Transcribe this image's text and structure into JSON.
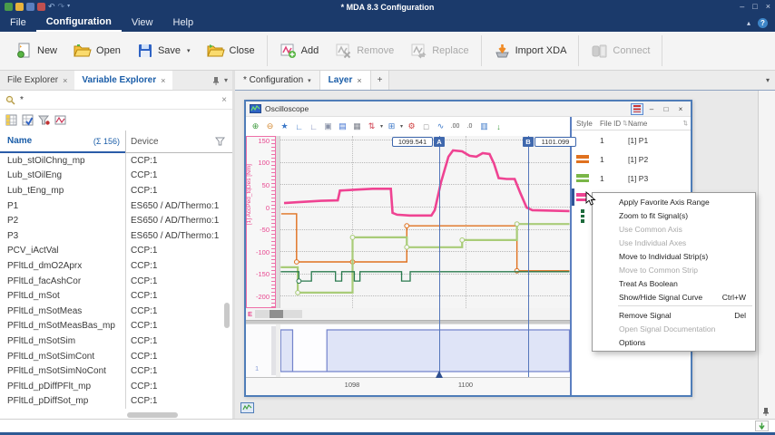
{
  "ui": {
    "close": "×",
    "dropdown": "▾",
    "collapse": "▴",
    "help": "?",
    "min": "–",
    "max": "□",
    "sort": "⇅",
    "plus": "+"
  },
  "titlebar": {
    "title": "* MDA 8.3  Configuration"
  },
  "menubar": {
    "items": [
      {
        "label": "File"
      },
      {
        "label": "Configuration"
      },
      {
        "label": "View"
      },
      {
        "label": "Help"
      }
    ]
  },
  "ribbon": {
    "groups": [
      {
        "buttons": [
          {
            "label": "New",
            "enabled": true
          },
          {
            "label": "Open",
            "enabled": true
          },
          {
            "label": "Save",
            "enabled": true,
            "dropdown": true
          },
          {
            "label": "Close",
            "enabled": true
          }
        ]
      },
      {
        "buttons": [
          {
            "label": "Add",
            "enabled": true
          },
          {
            "label": "Remove",
            "enabled": false
          },
          {
            "label": "Replace",
            "enabled": false
          }
        ]
      },
      {
        "buttons": [
          {
            "label": "Import XDA",
            "enabled": true
          }
        ]
      },
      {
        "buttons": [
          {
            "label": "Connect",
            "enabled": false
          }
        ]
      }
    ]
  },
  "explorer": {
    "tabs": [
      {
        "label": "File Explorer"
      },
      {
        "label": "Variable Explorer",
        "active": true
      }
    ],
    "search": {
      "value": "*"
    },
    "header": {
      "name": "Name",
      "sum": "(Σ 156)",
      "device": "Device"
    },
    "rows": [
      {
        "name": "Lub_stOilChng_mp",
        "device": "CCP:1"
      },
      {
        "name": "Lub_stOilEng",
        "device": "CCP:1"
      },
      {
        "name": "Lub_tEng_mp",
        "device": "CCP:1"
      },
      {
        "name": "P1",
        "device": "ES650 / AD/Thermo:1"
      },
      {
        "name": "P2",
        "device": "ES650 / AD/Thermo:1"
      },
      {
        "name": "P3",
        "device": "ES650 / AD/Thermo:1"
      },
      {
        "name": "PCV_iActVal",
        "device": "CCP:1"
      },
      {
        "name": "PFltLd_dmO2Aprx",
        "device": "CCP:1"
      },
      {
        "name": "PFltLd_facAshCor",
        "device": "CCP:1"
      },
      {
        "name": "PFltLd_mSot",
        "device": "CCP:1"
      },
      {
        "name": "PFltLd_mSotMeas",
        "device": "CCP:1"
      },
      {
        "name": "PFltLd_mSotMeasBas_mp",
        "device": "CCP:1"
      },
      {
        "name": "PFltLd_mSotSim",
        "device": "CCP:1"
      },
      {
        "name": "PFltLd_mSotSimCont",
        "device": "CCP:1"
      },
      {
        "name": "PFltLd_mSotSimNoCont",
        "device": "CCP:1"
      },
      {
        "name": "PFltLd_pDiffPFlt_mp",
        "device": "CCP:1"
      },
      {
        "name": "PFltLd_pDiffSot_mp",
        "device": "CCP:1"
      }
    ]
  },
  "doc_tabs": {
    "items": [
      {
        "label": "* Configuration",
        "dropdown": true
      },
      {
        "label": "Layer",
        "active": true,
        "close": true
      },
      {
        "label": "+"
      }
    ]
  },
  "oscilloscope": {
    "title": "Oscilloscope",
    "toolbar": [
      {
        "name": "zoom-in-icon",
        "glyph": "⊕",
        "color": "#3f9b3f"
      },
      {
        "name": "zoom-out-icon",
        "glyph": "⊖",
        "color": "#d3852b"
      },
      {
        "name": "zoom-favorite-icon",
        "glyph": "★",
        "color": "#3c78c8"
      },
      {
        "name": "fixed-axis-icon",
        "glyph": "∟",
        "color": "#3c78c8"
      },
      {
        "name": "auto-axis-icon",
        "glyph": "∟",
        "color": "#7a89b8"
      },
      {
        "name": "copy-icon",
        "glyph": "▣",
        "color": "#8a93a8"
      },
      {
        "name": "save-image-icon",
        "glyph": "▤",
        "color": "#3c6fd0"
      },
      {
        "name": "print-icon",
        "glyph": "▦",
        "color": "#7a7f8a"
      },
      {
        "name": "signal-color-icon",
        "glyph": "⇅",
        "color": "#cc3344",
        "dropdown": true
      },
      {
        "name": "fit-view-icon",
        "glyph": "⊞",
        "color": "#3c78c8",
        "dropdown": true
      },
      {
        "name": "settings-gear-icon",
        "glyph": "⚙",
        "color": "#d04040"
      },
      {
        "name": "selection-box-icon",
        "glyph": "□",
        "color": "#777777"
      },
      {
        "name": "curve-preview-icon",
        "glyph": "∿",
        "color": "#3c78c8"
      },
      {
        "name": "decimal-add-icon",
        "glyph": ".00",
        "color": "#555555"
      },
      {
        "name": "decimal-remove-icon",
        "glyph": ".0",
        "color": "#555555"
      },
      {
        "name": "table-view-icon",
        "glyph": "▥",
        "color": "#3c78c8"
      },
      {
        "name": "export-icon",
        "glyph": "↓",
        "color": "#3f9b3f"
      }
    ],
    "y_axis": {
      "label": "[1] AccPed_tqDes [Nm]",
      "overflow_label": "E"
    },
    "cursors": {
      "a": {
        "badge": "A",
        "value": "1099.541"
      },
      "b": {
        "badge": "B",
        "value": "1101.099"
      }
    },
    "x_axis": {
      "ticks": [
        "1098",
        "1100"
      ]
    },
    "bool_axis_label": "1",
    "signal_list": {
      "headers": {
        "style": "Style",
        "file_id": "File ID",
        "name": "Name"
      },
      "rows": [
        {
          "style_color": "",
          "file_id": "1",
          "name": "[1] P1",
          "selected": false,
          "dashed": false
        },
        {
          "style_color": "#e0711f",
          "file_id": "1",
          "name": "[1] P2",
          "selected": false,
          "dashed": false
        },
        {
          "style_color": "#7ab648",
          "file_id": "1",
          "name": "[1] P3",
          "selected": false,
          "dashed": false
        },
        {
          "style_color": "#ef4392",
          "file_id": "1",
          "name": "",
          "selected": true,
          "dashed": false
        },
        {
          "style_color": "#1e6b3c",
          "file_id": "",
          "name": "",
          "selected": false,
          "dashed": true
        }
      ]
    }
  },
  "context_menu": {
    "items": [
      {
        "label": "Apply Favorite Axis Range",
        "shortcut": "",
        "enabled": true
      },
      {
        "label": "Zoom to fit Signal(s)",
        "shortcut": "",
        "enabled": true
      },
      {
        "label": "Use Common Axis",
        "shortcut": "",
        "enabled": false
      },
      {
        "label": "Use Individual Axes",
        "shortcut": "",
        "enabled": false
      },
      {
        "label": "Move to Individual Strip(s)",
        "shortcut": "",
        "enabled": true
      },
      {
        "label": "Move to Common Strip",
        "shortcut": "",
        "enabled": false
      },
      {
        "label": "Treat As Boolean",
        "shortcut": "",
        "enabled": true
      },
      {
        "label": "Show/Hide Signal Curve",
        "shortcut": "Ctrl+W",
        "enabled": true,
        "separator_after": true
      },
      {
        "label": "Remove Signal",
        "shortcut": "Del",
        "enabled": true
      },
      {
        "label": "Open Signal Documentation",
        "shortcut": "",
        "enabled": false
      },
      {
        "label": "Options",
        "shortcut": "",
        "enabled": true
      }
    ]
  },
  "colors": {
    "titlebar": "#1b3a6b",
    "accent_blue": "#1a5da8",
    "cursor": "#5577bb",
    "pink": "#ef4392",
    "orange": "#e0711f",
    "light_green": "#a9cc78",
    "dark_green": "#2a7a4e",
    "boolean_fill": "#ccd3f2",
    "boolean_stroke": "#7383cc"
  },
  "chart_data": {
    "type": "line",
    "x_range": [
      1096.74,
      1101.8
    ],
    "x_ticks": [
      1098,
      1100
    ],
    "y_ticks": [
      150,
      100,
      50,
      0,
      -50,
      -100,
      -150,
      -200
    ],
    "y_axis_label": "[1] AccPed_tqDes [Nm]",
    "cursor_a": 1099.541,
    "cursor_b": 1101.099,
    "series": [
      {
        "name": "AccPed_tqDes",
        "color": "#ef4392",
        "width": 2.6,
        "markers": [],
        "points": [
          [
            1096.8,
            8
          ],
          [
            1097.05,
            10
          ],
          [
            1097.45,
            13
          ],
          [
            1097.74,
            14
          ],
          [
            1097.78,
            36
          ],
          [
            1098.05,
            38
          ],
          [
            1098.35,
            40
          ],
          [
            1098.67,
            40
          ],
          [
            1098.7,
            -14
          ],
          [
            1098.78,
            -18
          ],
          [
            1099.0,
            -20
          ],
          [
            1099.38,
            -20
          ],
          [
            1099.44,
            -8
          ],
          [
            1099.55,
            55
          ],
          [
            1099.68,
            112
          ],
          [
            1099.76,
            126
          ],
          [
            1099.92,
            124
          ],
          [
            1100.05,
            114
          ],
          [
            1100.17,
            112
          ],
          [
            1100.28,
            120
          ],
          [
            1100.4,
            118
          ],
          [
            1100.48,
            96
          ],
          [
            1100.56,
            64
          ],
          [
            1100.7,
            62
          ],
          [
            1100.84,
            62
          ],
          [
            1100.94,
            30
          ],
          [
            1101.05,
            -2
          ],
          [
            1101.15,
            -8
          ],
          [
            1101.8,
            -10
          ]
        ]
      },
      {
        "name": "P2",
        "color": "#e0711f",
        "width": 1.4,
        "points": [
          [
            1096.75,
            -16
          ],
          [
            1097.02,
            -16
          ],
          [
            1097.02,
            -124
          ],
          [
            1098.95,
            -124
          ],
          [
            1098.95,
            -43
          ],
          [
            1100.88,
            -43
          ],
          [
            1100.88,
            -144
          ],
          [
            1101.8,
            -144
          ]
        ],
        "markers": [
          [
            1097.02,
            -124
          ],
          [
            1098.0,
            -124
          ],
          [
            1098.95,
            -43
          ],
          [
            1100.88,
            -144
          ]
        ]
      },
      {
        "name": "P3",
        "color": "#a9cc78",
        "width": 2.2,
        "points": [
          [
            1096.74,
            -136
          ],
          [
            1097.04,
            -136
          ],
          [
            1097.04,
            -193
          ],
          [
            1098.0,
            -193
          ],
          [
            1098.0,
            -69
          ],
          [
            1098.95,
            -69
          ],
          [
            1098.95,
            -91
          ],
          [
            1099.92,
            -91
          ],
          [
            1099.92,
            -75
          ],
          [
            1100.88,
            -75
          ],
          [
            1100.88,
            -39
          ],
          [
            1101.8,
            -39
          ]
        ],
        "markers": [
          [
            1097.04,
            -193
          ],
          [
            1098.0,
            -69
          ],
          [
            1098.95,
            -91
          ],
          [
            1099.92,
            -75
          ],
          [
            1100.88,
            -39
          ]
        ]
      },
      {
        "name": "boolean-state-signal",
        "color": "#2a7a4e",
        "width": 1.3,
        "points": [
          [
            1096.74,
            -146
          ],
          [
            1097.06,
            -146
          ],
          [
            1097.06,
            -167
          ],
          [
            1097.28,
            -167
          ],
          [
            1097.28,
            -146
          ],
          [
            1097.7,
            -146
          ],
          [
            1097.7,
            -167
          ],
          [
            1097.81,
            -167
          ],
          [
            1097.81,
            -146
          ],
          [
            1098.03,
            -146
          ],
          [
            1098.03,
            -167
          ],
          [
            1098.13,
            -167
          ],
          [
            1098.13,
            -146
          ],
          [
            1098.86,
            -146
          ],
          [
            1098.86,
            -167
          ],
          [
            1099.01,
            -167
          ],
          [
            1099.01,
            -146
          ],
          [
            1101.8,
            -146
          ]
        ],
        "markers": [
          [
            1097.06,
            -167
          ]
        ]
      }
    ],
    "boolean_series": {
      "name": "boolean-strip-signal",
      "fill": "#ccd3f2",
      "stroke": "#7383cc",
      "points": [
        [
          1096.74,
          1
        ],
        [
          1096.95,
          1
        ],
        [
          1096.95,
          0
        ],
        [
          1097.55,
          0
        ],
        [
          1097.55,
          1
        ],
        [
          1101.8,
          1
        ]
      ]
    }
  }
}
